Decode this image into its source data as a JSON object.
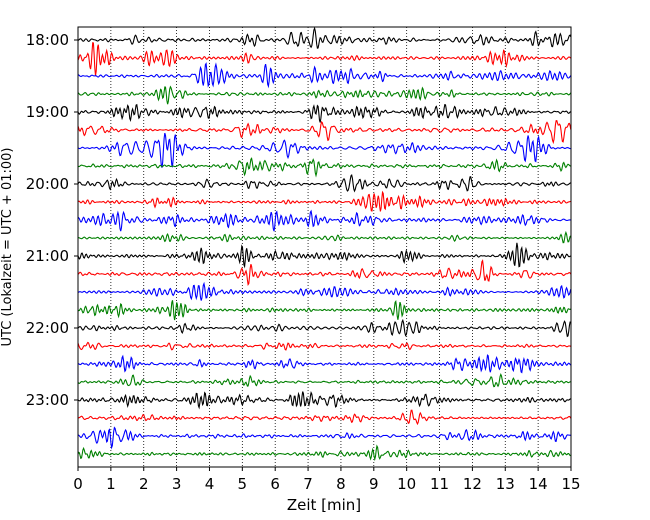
{
  "chart_data": {
    "type": "line",
    "title": "",
    "xlabel": "Zeit  [min]",
    "ylabel": "UTC (Lokalzeit = UTC + 01:00)",
    "xlim": [
      0,
      15
    ],
    "x_ticks": [
      0,
      1,
      2,
      3,
      4,
      5,
      6,
      7,
      8,
      9,
      10,
      11,
      12,
      13,
      14,
      15
    ],
    "x_tick_labels": [
      "0",
      "1",
      "2",
      "3",
      "4",
      "5",
      "6",
      "7",
      "8",
      "9",
      "10",
      "11",
      "12",
      "13",
      "14",
      "15"
    ],
    "y_tick_labels": [
      "18:00",
      "19:00",
      "20:00",
      "21:00",
      "22:00",
      "23:00"
    ],
    "grid": "vertical-dotted",
    "line_colors": [
      "#000000",
      "#ff0000",
      "#0000ff",
      "#008000"
    ],
    "traces": [
      {
        "start": "18:00",
        "color": "#000000"
      },
      {
        "start": "18:15",
        "color": "#ff0000"
      },
      {
        "start": "18:30",
        "color": "#0000ff"
      },
      {
        "start": "18:45",
        "color": "#008000"
      },
      {
        "start": "19:00",
        "color": "#000000"
      },
      {
        "start": "19:15",
        "color": "#ff0000"
      },
      {
        "start": "19:30",
        "color": "#0000ff"
      },
      {
        "start": "19:45",
        "color": "#008000"
      },
      {
        "start": "20:00",
        "color": "#000000"
      },
      {
        "start": "20:15",
        "color": "#ff0000"
      },
      {
        "start": "20:30",
        "color": "#0000ff"
      },
      {
        "start": "20:45",
        "color": "#008000"
      },
      {
        "start": "21:00",
        "color": "#000000"
      },
      {
        "start": "21:15",
        "color": "#ff0000"
      },
      {
        "start": "21:30",
        "color": "#0000ff"
      },
      {
        "start": "21:45",
        "color": "#008000"
      },
      {
        "start": "22:00",
        "color": "#000000"
      },
      {
        "start": "22:15",
        "color": "#ff0000"
      },
      {
        "start": "22:30",
        "color": "#0000ff"
      },
      {
        "start": "22:45",
        "color": "#008000"
      },
      {
        "start": "23:00",
        "color": "#000000"
      },
      {
        "start": "23:15",
        "color": "#ff0000"
      },
      {
        "start": "23:30",
        "color": "#0000ff"
      },
      {
        "start": "23:45",
        "color": "#008000"
      }
    ]
  }
}
